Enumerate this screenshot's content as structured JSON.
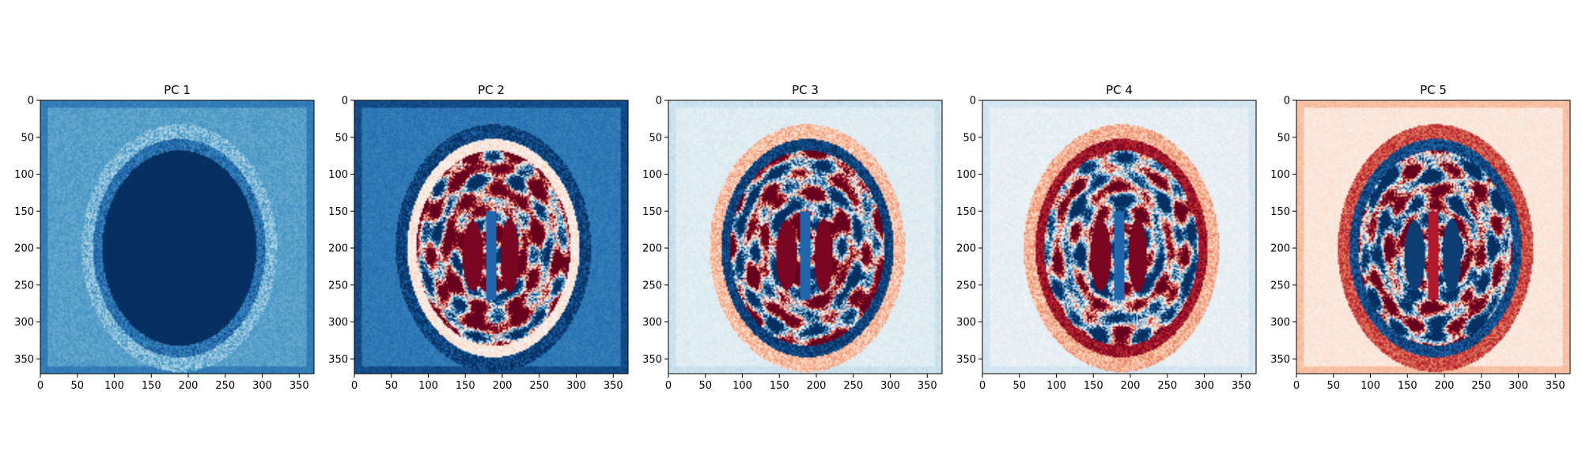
{
  "figure": {
    "colormap": "RdBu_r",
    "colormap_stops": [
      "#053061",
      "#2166ac",
      "#4393c3",
      "#92c5de",
      "#d1e5f0",
      "#f7f7f7",
      "#fddbc7",
      "#f4a582",
      "#d6604d",
      "#b2182b",
      "#67001f"
    ]
  },
  "chart_data": [
    {
      "type": "heatmap",
      "title": "PC 1",
      "xlabel": "",
      "ylabel": "",
      "xlim": [
        0,
        370
      ],
      "ylim": [
        370,
        0
      ],
      "xticks": [
        0,
        50,
        100,
        150,
        200,
        250,
        300,
        350
      ],
      "yticks": [
        0,
        50,
        100,
        150,
        200,
        250,
        300,
        350
      ],
      "grid": false,
      "pattern": {
        "background": -0.55,
        "frame": -0.7,
        "ring": -0.45,
        "skull": -0.75,
        "interior": -1.0,
        "solid_interior": true,
        "interior_noise": 0.0,
        "vent_sign": -1.0
      }
    },
    {
      "type": "heatmap",
      "title": "PC 2",
      "xlabel": "",
      "ylabel": "",
      "xlim": [
        0,
        370
      ],
      "ylim": [
        370,
        0
      ],
      "xticks": [
        0,
        50,
        100,
        150,
        200,
        250,
        300,
        350
      ],
      "yticks": [
        0,
        50,
        100,
        150,
        200,
        250,
        300,
        350
      ],
      "grid": false,
      "pattern": {
        "background": -0.72,
        "frame": -0.9,
        "ring": -0.95,
        "skull": 0.1,
        "interior": 0.35,
        "solid_interior": false,
        "interior_noise": 1.0,
        "vent_sign": 1.0
      }
    },
    {
      "type": "heatmap",
      "title": "PC 3",
      "xlabel": "",
      "ylabel": "",
      "xlim": [
        0,
        370
      ],
      "ylim": [
        370,
        0
      ],
      "xticks": [
        0,
        50,
        100,
        150,
        200,
        250,
        300,
        350
      ],
      "yticks": [
        0,
        50,
        100,
        150,
        200,
        250,
        300,
        350
      ],
      "grid": false,
      "pattern": {
        "background": -0.12,
        "frame": -0.22,
        "ring": 0.3,
        "skull": -0.95,
        "interior": 0.05,
        "solid_interior": false,
        "interior_noise": 1.0,
        "vent_sign": 1.0
      }
    },
    {
      "type": "heatmap",
      "title": "PC 4",
      "xlabel": "",
      "ylabel": "",
      "xlim": [
        0,
        370
      ],
      "ylim": [
        370,
        0
      ],
      "xticks": [
        0,
        50,
        100,
        150,
        200,
        250,
        300,
        350
      ],
      "yticks": [
        0,
        50,
        100,
        150,
        200,
        250,
        300,
        350
      ],
      "grid": false,
      "pattern": {
        "background": -0.08,
        "frame": -0.18,
        "ring": 0.35,
        "skull": 0.85,
        "interior": -0.05,
        "solid_interior": false,
        "interior_noise": 0.85,
        "vent_sign": 1.0
      }
    },
    {
      "type": "heatmap",
      "title": "PC 5",
      "xlabel": "",
      "ylabel": "",
      "xlim": [
        0,
        370
      ],
      "ylim": [
        370,
        0
      ],
      "xticks": [
        0,
        50,
        100,
        150,
        200,
        250,
        300,
        350
      ],
      "yticks": [
        0,
        50,
        100,
        150,
        200,
        250,
        300,
        350
      ],
      "grid": false,
      "pattern": {
        "background": 0.12,
        "frame": 0.3,
        "ring": 0.65,
        "skull": -0.9,
        "interior": 0.0,
        "solid_interior": false,
        "interior_noise": 1.0,
        "vent_sign": -1.0
      }
    }
  ]
}
